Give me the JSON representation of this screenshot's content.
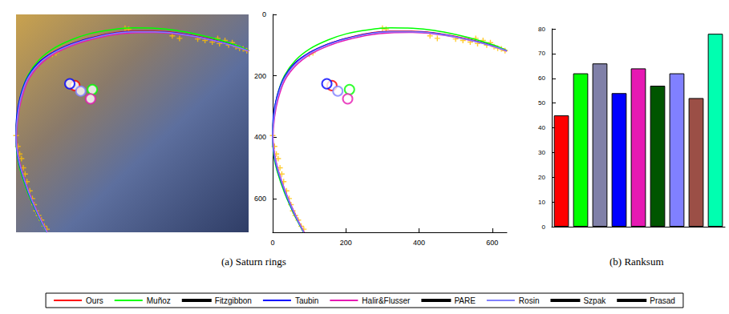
{
  "chart_data": [
    {
      "type": "scatter",
      "title": "(a) Saturn rings",
      "xlim": [
        0,
        640
      ],
      "xticks": [
        0,
        200,
        400,
        600
      ],
      "ylim": [
        0,
        710
      ],
      "yticks": [
        0,
        200,
        400,
        600
      ],
      "grid": false,
      "series": [
        {
          "type": "scatter",
          "marker": "plus",
          "color": "#ffc000",
          "x": [
            0,
            5,
            10,
            15,
            20,
            25,
            30,
            38,
            45,
            50,
            55,
            62,
            70,
            78,
            85,
            100,
            110,
            300,
            310,
            430,
            450,
            500,
            520,
            540,
            555,
            560,
            575,
            585,
            595,
            605,
            615,
            625,
            635
          ],
          "values": [
            395,
            430,
            455,
            470,
            500,
            520,
            545,
            575,
            600,
            620,
            640,
            655,
            670,
            690,
            700,
            130,
            125,
            45,
            48,
            70,
            78,
            80,
            85,
            90,
            78,
            95,
            85,
            100,
            92,
            105,
            110,
            112,
            118
          ]
        },
        {
          "name": "Ours",
          "type": "line",
          "color": "#ff0000",
          "center": [
            162,
            232
          ],
          "x": [
            85,
            60,
            35,
            15,
            5,
            0,
            3,
            12,
            30,
            60,
            100,
            150,
            200,
            260,
            320,
            380,
            440,
            500,
            560,
            610,
            640
          ],
          "values": [
            710,
            650,
            580,
            510,
            460,
            400,
            330,
            270,
            210,
            160,
            125,
            97,
            78,
            62,
            55,
            55,
            60,
            72,
            88,
            105,
            118
          ]
        },
        {
          "name": "Muñoz",
          "type": "line",
          "color": "#00ff00",
          "center": [
            210,
            245
          ],
          "x": [
            84,
            58,
            32,
            12,
            3,
            0,
            3,
            13,
            32,
            62,
            102,
            152,
            202,
            262,
            322,
            382,
            442,
            502,
            562,
            612,
            640
          ],
          "values": [
            710,
            650,
            580,
            510,
            460,
            400,
            325,
            262,
            200,
            150,
            112,
            83,
            63,
            50,
            44,
            45,
            52,
            66,
            84,
            103,
            118
          ]
        },
        {
          "name": "Taubin",
          "type": "line",
          "color": "#0000ff",
          "center": [
            148,
            226
          ],
          "x": [
            85,
            59,
            34,
            14,
            4,
            0,
            2,
            11,
            29,
            59,
            99,
            149,
            199,
            259,
            319,
            379,
            439,
            499,
            559,
            609,
            640
          ],
          "values": [
            710,
            650,
            580,
            510,
            460,
            400,
            331,
            271,
            211,
            161,
            126,
            98,
            79,
            63,
            56,
            56,
            61,
            73,
            89,
            106,
            119
          ]
        },
        {
          "name": "Halir&Flusser",
          "type": "line",
          "color": "#e619b3",
          "center": [
            205,
            275
          ],
          "x": [
            86,
            61,
            36,
            16,
            6,
            1,
            5,
            15,
            33,
            63,
            103,
            153,
            203,
            263,
            323,
            383,
            443,
            503,
            563,
            613,
            640
          ],
          "values": [
            710,
            650,
            580,
            510,
            460,
            400,
            335,
            275,
            215,
            167,
            130,
            102,
            83,
            67,
            60,
            59,
            64,
            75,
            91,
            108,
            120
          ]
        },
        {
          "name": "Rosin",
          "type": "line",
          "color": "#8080ff",
          "center": [
            178,
            250
          ],
          "x": [
            85,
            60,
            35,
            15,
            5,
            0,
            4,
            13,
            31,
            61,
            101,
            151,
            201,
            261,
            321,
            381,
            441,
            501,
            561,
            611,
            640
          ],
          "values": [
            710,
            650,
            580,
            510,
            460,
            400,
            332,
            272,
            212,
            163,
            127,
            99,
            80,
            64,
            57,
            57,
            62,
            74,
            90,
            107,
            119
          ]
        }
      ]
    },
    {
      "type": "bar",
      "title": "(b) Ranksum",
      "categories": [
        "Ours",
        "Muñoz",
        "Fitzgibbon",
        "Taubin",
        "Halir&Flusser",
        "PARE",
        "Rosin",
        "Szpak",
        "Prasad"
      ],
      "values": [
        45,
        62,
        66,
        54,
        64,
        57,
        62,
        52,
        78
      ],
      "colors": [
        "#ff0000",
        "#00ff00",
        "#8080a8",
        "#0000ff",
        "#e619b3",
        "#005500",
        "#8080ff",
        "#9b4f46",
        "#00ffb0"
      ],
      "ylim": [
        0,
        80
      ],
      "yticks": [
        0,
        10,
        20,
        30,
        40,
        50,
        60,
        70,
        80
      ],
      "grid": false,
      "tick_labels": "y",
      "legend": "bottom"
    }
  ]
}
